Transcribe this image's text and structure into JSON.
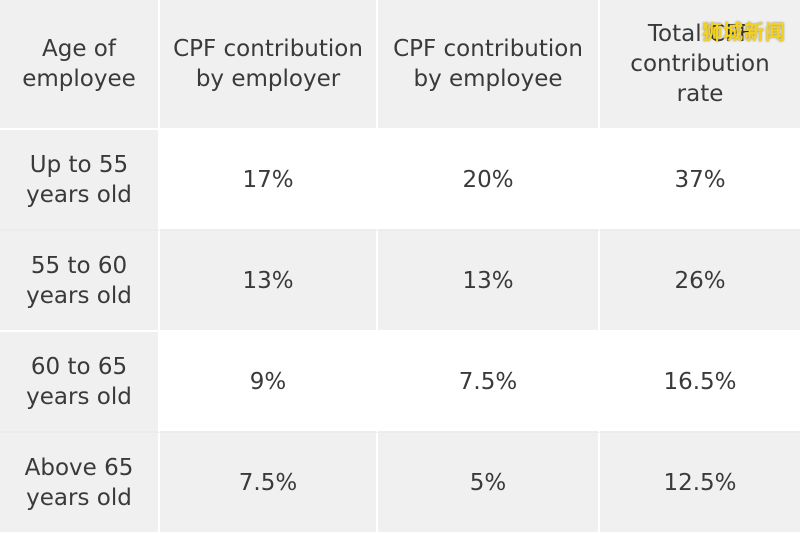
{
  "table": {
    "headers": [
      "Age of employee",
      "CPF contribution by employer",
      "CPF contribution by employee",
      "Total CPF contribution rate"
    ],
    "rows": [
      [
        "Up to 55 years old",
        "17%",
        "20%",
        "37%"
      ],
      [
        "55 to 60 years old",
        "13%",
        "13%",
        "26%"
      ],
      [
        "60 to 65 years old",
        "9%",
        "7.5%",
        "16.5%"
      ],
      [
        "Above 65 years old",
        "7.5%",
        "5%",
        "12.5%"
      ]
    ]
  },
  "watermark": {
    "text": "狮城新闻",
    "color": "#f5d21c"
  }
}
